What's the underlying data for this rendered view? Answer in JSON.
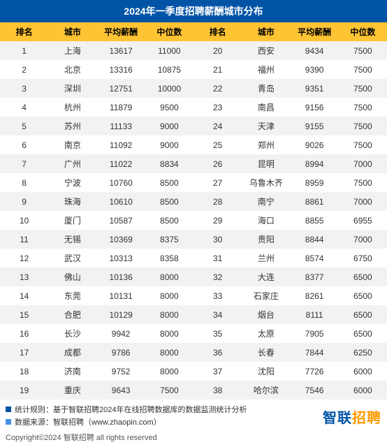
{
  "title": "2024年一季度招聘薪酬城市分布",
  "headers": [
    "排名",
    "城市",
    "平均薪酬",
    "中位数",
    "排名",
    "城市",
    "平均薪酬",
    "中位数"
  ],
  "rows": [
    [
      "1",
      "上海",
      "13617",
      "11000",
      "20",
      "西安",
      "9434",
      "7500"
    ],
    [
      "2",
      "北京",
      "13316",
      "10875",
      "21",
      "福州",
      "9390",
      "7500"
    ],
    [
      "3",
      "深圳",
      "12751",
      "10000",
      "22",
      "青岛",
      "9351",
      "7500"
    ],
    [
      "4",
      "杭州",
      "11879",
      "9500",
      "23",
      "南昌",
      "9156",
      "7500"
    ],
    [
      "5",
      "苏州",
      "11133",
      "9000",
      "24",
      "天津",
      "9155",
      "7500"
    ],
    [
      "6",
      "南京",
      "11092",
      "9000",
      "25",
      "郑州",
      "9026",
      "7500"
    ],
    [
      "7",
      "广州",
      "11022",
      "8834",
      "26",
      "昆明",
      "8994",
      "7000"
    ],
    [
      "8",
      "宁波",
      "10760",
      "8500",
      "27",
      "乌鲁木齐",
      "8959",
      "7500"
    ],
    [
      "9",
      "珠海",
      "10610",
      "8500",
      "28",
      "南宁",
      "8861",
      "7000"
    ],
    [
      "10",
      "厦门",
      "10587",
      "8500",
      "29",
      "海口",
      "8855",
      "6955"
    ],
    [
      "11",
      "无锡",
      "10369",
      "8375",
      "30",
      "贵阳",
      "8844",
      "7000"
    ],
    [
      "12",
      "武汉",
      "10313",
      "8358",
      "31",
      "兰州",
      "8574",
      "6750"
    ],
    [
      "13",
      "佛山",
      "10136",
      "8000",
      "32",
      "大连",
      "8377",
      "6500"
    ],
    [
      "14",
      "东莞",
      "10131",
      "8000",
      "33",
      "石家庄",
      "8261",
      "6500"
    ],
    [
      "15",
      "合肥",
      "10129",
      "8000",
      "34",
      "烟台",
      "8111",
      "6500"
    ],
    [
      "16",
      "长沙",
      "9942",
      "8000",
      "35",
      "太原",
      "7905",
      "6500"
    ],
    [
      "17",
      "成都",
      "9786",
      "8000",
      "36",
      "长春",
      "7844",
      "6250"
    ],
    [
      "18",
      "济南",
      "9752",
      "8000",
      "37",
      "沈阳",
      "7726",
      "6000"
    ],
    [
      "19",
      "重庆",
      "9643",
      "7500",
      "38",
      "哈尔滨",
      "7546",
      "6000"
    ]
  ],
  "footer": {
    "stat_rule_label": "统计规则：",
    "stat_rule_text": "基于智联招聘2024年在线招聘数据库的数据监测统计分析",
    "source_label": "数据来源：",
    "source_text": "智联招聘（www.zhaopin.com）",
    "brand_part1": "智联",
    "brand_part2": "招聘",
    "copyright": "Copyright©2024 智联招聘 all rights reserved"
  },
  "colors": {
    "title_bg": "#0054a6",
    "header_bg": "#ffc433",
    "row_even": "#f2f2f2",
    "row_odd": "#ffffff",
    "brand_blue": "#0054a6",
    "brand_orange": "#ff9900"
  }
}
